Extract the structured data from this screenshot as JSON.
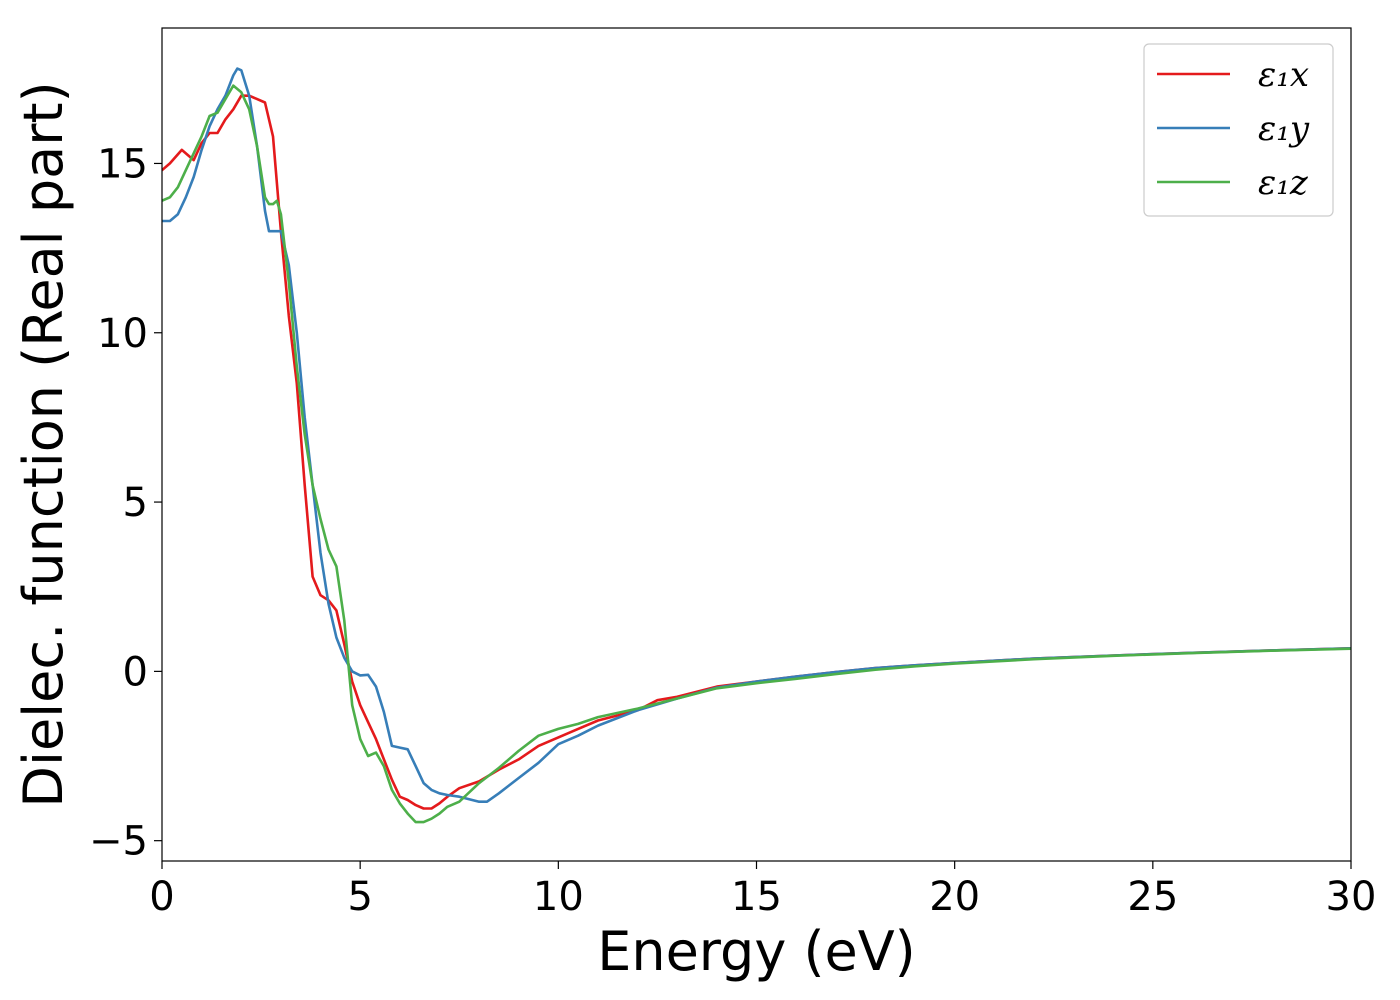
{
  "chart_data": {
    "type": "line",
    "title": "",
    "xlabel": "Energy (eV)",
    "ylabel": "Dielec. function (Real part)",
    "xlim": [
      0,
      30
    ],
    "ylim": [
      -5.6,
      19.0
    ],
    "xticks": [
      0,
      5,
      10,
      15,
      20,
      25,
      30
    ],
    "xtick_labels": [
      "0",
      "5",
      "10",
      "15",
      "20",
      "25",
      "30"
    ],
    "yticks": [
      -5,
      0,
      5,
      10,
      15
    ],
    "ytick_labels": [
      "−5",
      "0",
      "5",
      "10",
      "15"
    ],
    "grid": false,
    "legend_position": "top-right",
    "series": [
      {
        "name": "ε₁x",
        "color": "#e41a1c",
        "points": [
          [
            0.0,
            14.8
          ],
          [
            0.2,
            15.0
          ],
          [
            0.5,
            15.4
          ],
          [
            0.8,
            15.1
          ],
          [
            1.0,
            15.6
          ],
          [
            1.2,
            15.9
          ],
          [
            1.4,
            15.9
          ],
          [
            1.6,
            16.3
          ],
          [
            1.8,
            16.6
          ],
          [
            2.0,
            17.0
          ],
          [
            2.2,
            17.0
          ],
          [
            2.4,
            16.9
          ],
          [
            2.6,
            16.8
          ],
          [
            2.8,
            15.8
          ],
          [
            3.0,
            13.0
          ],
          [
            3.2,
            10.5
          ],
          [
            3.4,
            8.5
          ],
          [
            3.6,
            5.5
          ],
          [
            3.8,
            2.8
          ],
          [
            4.0,
            2.25
          ],
          [
            4.2,
            2.1
          ],
          [
            4.4,
            1.8
          ],
          [
            4.6,
            0.8
          ],
          [
            4.8,
            -0.3
          ],
          [
            5.0,
            -1.0
          ],
          [
            5.2,
            -1.5
          ],
          [
            5.4,
            -2.0
          ],
          [
            5.6,
            -2.6
          ],
          [
            5.8,
            -3.2
          ],
          [
            6.0,
            -3.7
          ],
          [
            6.2,
            -3.8
          ],
          [
            6.4,
            -3.95
          ],
          [
            6.6,
            -4.05
          ],
          [
            6.8,
            -4.05
          ],
          [
            7.0,
            -3.9
          ],
          [
            7.2,
            -3.7
          ],
          [
            7.5,
            -3.45
          ],
          [
            8.0,
            -3.25
          ],
          [
            8.5,
            -2.9
          ],
          [
            9.0,
            -2.6
          ],
          [
            9.5,
            -2.2
          ],
          [
            10.0,
            -1.95
          ],
          [
            10.5,
            -1.7
          ],
          [
            11.0,
            -1.45
          ],
          [
            12.0,
            -1.15
          ],
          [
            12.5,
            -0.85
          ],
          [
            13.0,
            -0.75
          ],
          [
            14.0,
            -0.45
          ],
          [
            15.0,
            -0.3
          ],
          [
            16.0,
            -0.15
          ],
          [
            17.0,
            -0.02
          ],
          [
            18.0,
            0.1
          ],
          [
            19.0,
            0.18
          ],
          [
            20.0,
            0.25
          ],
          [
            22.0,
            0.38
          ],
          [
            24.0,
            0.47
          ],
          [
            26.0,
            0.55
          ],
          [
            28.0,
            0.62
          ],
          [
            30.0,
            0.68
          ]
        ]
      },
      {
        "name": "ε₁y",
        "color": "#377eb8",
        "points": [
          [
            0.0,
            13.3
          ],
          [
            0.2,
            13.3
          ],
          [
            0.4,
            13.5
          ],
          [
            0.6,
            14.0
          ],
          [
            0.8,
            14.6
          ],
          [
            1.0,
            15.4
          ],
          [
            1.2,
            16.1
          ],
          [
            1.4,
            16.6
          ],
          [
            1.6,
            17.0
          ],
          [
            1.8,
            17.6
          ],
          [
            1.9,
            17.8
          ],
          [
            2.0,
            17.75
          ],
          [
            2.2,
            17.0
          ],
          [
            2.4,
            15.5
          ],
          [
            2.6,
            13.6
          ],
          [
            2.7,
            13.0
          ],
          [
            2.8,
            13.0
          ],
          [
            3.0,
            13.0
          ],
          [
            3.2,
            12.0
          ],
          [
            3.4,
            10.0
          ],
          [
            3.6,
            7.5
          ],
          [
            3.8,
            5.5
          ],
          [
            4.0,
            3.5
          ],
          [
            4.2,
            2.0
          ],
          [
            4.4,
            1.0
          ],
          [
            4.6,
            0.4
          ],
          [
            4.8,
            0.0
          ],
          [
            5.0,
            -0.12
          ],
          [
            5.2,
            -0.1
          ],
          [
            5.4,
            -0.45
          ],
          [
            5.6,
            -1.2
          ],
          [
            5.8,
            -2.2
          ],
          [
            6.0,
            -2.25
          ],
          [
            6.2,
            -2.3
          ],
          [
            6.4,
            -2.8
          ],
          [
            6.6,
            -3.3
          ],
          [
            6.8,
            -3.5
          ],
          [
            7.0,
            -3.6
          ],
          [
            7.2,
            -3.65
          ],
          [
            7.5,
            -3.7
          ],
          [
            8.0,
            -3.85
          ],
          [
            8.2,
            -3.85
          ],
          [
            8.5,
            -3.6
          ],
          [
            9.0,
            -3.15
          ],
          [
            9.5,
            -2.7
          ],
          [
            10.0,
            -2.15
          ],
          [
            10.5,
            -1.9
          ],
          [
            11.0,
            -1.6
          ],
          [
            12.0,
            -1.15
          ],
          [
            13.0,
            -0.8
          ],
          [
            14.0,
            -0.48
          ],
          [
            15.0,
            -0.3
          ],
          [
            16.0,
            -0.15
          ],
          [
            17.0,
            -0.02
          ],
          [
            18.0,
            0.1
          ],
          [
            19.0,
            0.18
          ],
          [
            20.0,
            0.25
          ],
          [
            22.0,
            0.38
          ],
          [
            24.0,
            0.47
          ],
          [
            26.0,
            0.55
          ],
          [
            28.0,
            0.62
          ],
          [
            30.0,
            0.68
          ]
        ]
      },
      {
        "name": "ε₁z",
        "color": "#4daf4a",
        "points": [
          [
            0.0,
            13.9
          ],
          [
            0.2,
            14.0
          ],
          [
            0.4,
            14.3
          ],
          [
            0.6,
            14.8
          ],
          [
            0.8,
            15.3
          ],
          [
            1.0,
            15.8
          ],
          [
            1.2,
            16.4
          ],
          [
            1.4,
            16.5
          ],
          [
            1.6,
            16.9
          ],
          [
            1.8,
            17.3
          ],
          [
            2.0,
            17.1
          ],
          [
            2.2,
            16.6
          ],
          [
            2.4,
            15.5
          ],
          [
            2.6,
            14.0
          ],
          [
            2.7,
            13.8
          ],
          [
            2.8,
            13.8
          ],
          [
            2.9,
            13.9
          ],
          [
            3.0,
            13.5
          ],
          [
            3.2,
            11.5
          ],
          [
            3.4,
            9.0
          ],
          [
            3.6,
            7.0
          ],
          [
            3.8,
            5.5
          ],
          [
            4.0,
            4.5
          ],
          [
            4.2,
            3.6
          ],
          [
            4.4,
            3.1
          ],
          [
            4.6,
            1.5
          ],
          [
            4.8,
            -1.0
          ],
          [
            5.0,
            -2.0
          ],
          [
            5.2,
            -2.5
          ],
          [
            5.4,
            -2.4
          ],
          [
            5.6,
            -2.8
          ],
          [
            5.8,
            -3.5
          ],
          [
            6.0,
            -3.9
          ],
          [
            6.2,
            -4.2
          ],
          [
            6.4,
            -4.45
          ],
          [
            6.6,
            -4.45
          ],
          [
            6.8,
            -4.35
          ],
          [
            7.0,
            -4.2
          ],
          [
            7.2,
            -4.0
          ],
          [
            7.5,
            -3.85
          ],
          [
            8.0,
            -3.3
          ],
          [
            8.5,
            -2.85
          ],
          [
            9.0,
            -2.35
          ],
          [
            9.5,
            -1.9
          ],
          [
            10.0,
            -1.7
          ],
          [
            10.5,
            -1.55
          ],
          [
            11.0,
            -1.35
          ],
          [
            12.0,
            -1.1
          ],
          [
            12.5,
            -0.95
          ],
          [
            13.0,
            -0.8
          ],
          [
            14.0,
            -0.5
          ],
          [
            15.0,
            -0.35
          ],
          [
            16.0,
            -0.22
          ],
          [
            17.0,
            -0.08
          ],
          [
            18.0,
            0.05
          ],
          [
            19.0,
            0.15
          ],
          [
            20.0,
            0.23
          ],
          [
            22.0,
            0.36
          ],
          [
            24.0,
            0.46
          ],
          [
            26.0,
            0.54
          ],
          [
            28.0,
            0.61
          ],
          [
            30.0,
            0.67
          ]
        ]
      }
    ]
  }
}
